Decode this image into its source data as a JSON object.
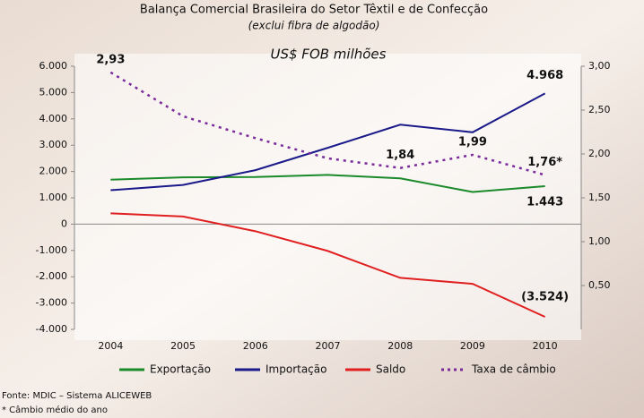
{
  "chart_data": {
    "type": "line",
    "title": "Balança Comercial Brasileira do Setor Têxtil e de Confecção",
    "subtitle": "(exclui fibra de algodão)",
    "unit_label": "US$ FOB milhões",
    "notes": [
      "Fonte: MDIC – Sistema ALICEWEB",
      "* Câmbio médio do ano"
    ],
    "categories": [
      "2004",
      "2005",
      "2006",
      "2007",
      "2008",
      "2009",
      "2010"
    ],
    "series": [
      {
        "name": "Exportação",
        "color": "#1a8a2a",
        "values": [
          1690,
          1780,
          1790,
          1870,
          1740,
          1220,
          1443
        ],
        "value_labels": [
          null,
          null,
          null,
          null,
          null,
          null,
          "1.443"
        ]
      },
      {
        "name": "Importação",
        "color": "#1a1a8a",
        "values": [
          1290,
          1490,
          2050,
          2900,
          3780,
          3490,
          4968
        ],
        "value_labels": [
          null,
          null,
          null,
          null,
          null,
          null,
          "4.968"
        ]
      },
      {
        "name": "Saldo",
        "color": "#e02020",
        "values": [
          410,
          290,
          -270,
          -1020,
          -2040,
          -2270,
          -3524
        ],
        "value_labels": [
          null,
          null,
          null,
          null,
          null,
          null,
          "(3.524)"
        ]
      },
      {
        "name": "Taxa de câmbio",
        "color": "#7a2a9a",
        "axis": "y2",
        "dashed": true,
        "values": [
          2.93,
          2.43,
          2.18,
          1.95,
          1.84,
          1.99,
          1.76
        ],
        "value_labels": [
          "2,93",
          null,
          null,
          null,
          "1,84",
          "1,99",
          "1,76*"
        ]
      }
    ],
    "ylim": [
      -4000,
      6000
    ],
    "yticks": [
      {
        "value": -4000,
        "label": "-4.000"
      },
      {
        "value": -3000,
        "label": "-3.000"
      },
      {
        "value": -2000,
        "label": "-2.000"
      },
      {
        "value": -1000,
        "label": "-1.000"
      },
      0,
      {
        "value": 1000,
        "label": "1.000"
      },
      {
        "value": 2000,
        "label": "2.000"
      },
      {
        "value": 3000,
        "label": "3.000"
      },
      {
        "value": 4000,
        "label": "4.000"
      },
      {
        "value": 5000,
        "label": "5.000"
      },
      {
        "value": 6000,
        "label": "6.000"
      }
    ],
    "y2lim": [
      0,
      3
    ],
    "y2ticks": [
      {
        "value": 0.5,
        "label": "0,50"
      },
      {
        "value": 1,
        "label": "1,00"
      },
      {
        "value": 1.5,
        "label": "1,50"
      },
      {
        "value": 2,
        "label": "2,00"
      },
      {
        "value": 2.5,
        "label": "2,50"
      },
      {
        "value": 3,
        "label": "3,00"
      }
    ],
    "legend": "bottom",
    "grid": false
  }
}
